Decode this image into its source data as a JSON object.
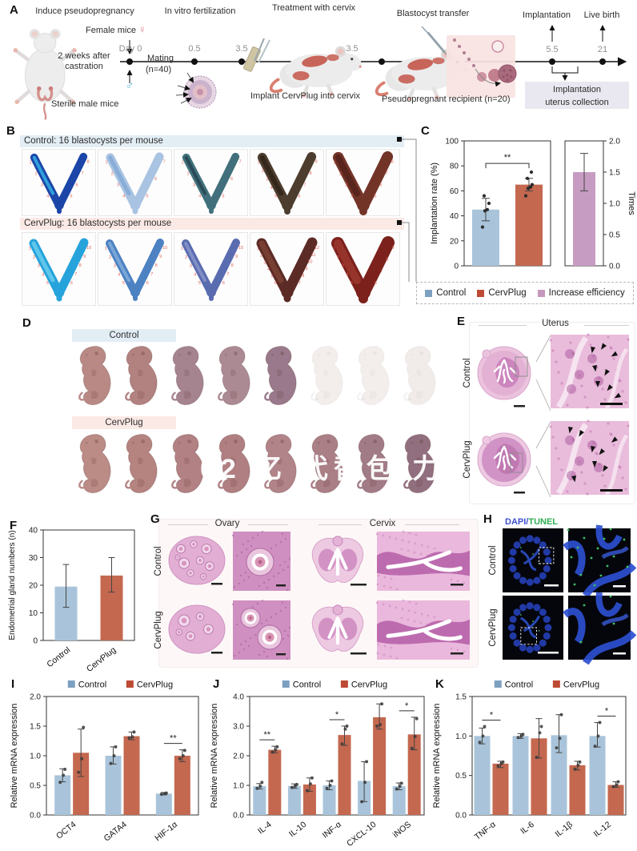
{
  "colors": {
    "control": "#a9c4da",
    "cervplug": "#c4684f",
    "increase": "#c79cc2",
    "legend_control": "#7d9fc0",
    "legend_cervplug": "#bd4a33",
    "legend_increase": "#c598c0",
    "site_number": "#e0635a",
    "band_blue": "#e2edf4",
    "band_pink": "#fbe9e5"
  },
  "figure": {
    "panel_a": {
      "label": "A",
      "step_labels": [
        "Induce pseudopregnancy",
        "In vitro fertilization",
        "Treatment with cervix",
        "Blastocyst transfer",
        "Implantation",
        "Live birth"
      ],
      "female_mice": "Female mice",
      "female_symbol": "♀",
      "male_symbol": "♂",
      "day0": "Day 0",
      "castration_note": "2 weeks after castration",
      "mating_line1": "Mating",
      "mating_line2": "(n=40)",
      "sterile_note": "Sterile male mice",
      "timepoints": [
        {
          "label": "0.5"
        },
        {
          "label": "3.5"
        },
        {
          "label": "3.5"
        },
        {
          "label": "5.5"
        },
        {
          "label": "21"
        }
      ],
      "implant_caption": "Implant CervPlug into cervix",
      "recipient_caption": "Pseudopregnant recipient (n=20)",
      "collection_line1": "Implantation",
      "collection_line2": "uterus collection"
    },
    "panel_b": {
      "label": "B",
      "groups": [
        {
          "header": "Control: 16 blastocysts per mouse",
          "band_color": "#e2edf4",
          "uteri": [
            {
              "color": "#1b46a8",
              "accent": "#35b6e8",
              "sites": 8,
              "w": 10
            },
            {
              "color": "#a9c3e2",
              "accent": "#7fa8d4",
              "sites": 7,
              "w": 11
            },
            {
              "color": "#41707c",
              "accent": "#23424e",
              "sites": 7,
              "w": 10
            },
            {
              "color": "#4c3d2e",
              "accent": "#2e2218",
              "sites": 9,
              "w": 12
            },
            {
              "color": "#733428",
              "accent": "#51201a",
              "sites": 8,
              "w": 14
            }
          ]
        },
        {
          "header": "CervPlug: 16 blastocysts per mouse",
          "band_color": "#fbe9e5",
          "uteri": [
            {
              "color": "#27a3dc",
              "accent": "#6fd0f0",
              "sites": 10,
              "w": 11
            },
            {
              "color": "#4d82c2",
              "accent": "#86b0dc",
              "sites": 10,
              "w": 10
            },
            {
              "color": "#5a6cb0",
              "accent": "#8b98cc",
              "sites": 10,
              "w": 10
            },
            {
              "color": "#5c2b26",
              "accent": "#7e4436",
              "sites": 12,
              "w": 13
            },
            {
              "color": "#7c211c",
              "accent": "#9c3a30",
              "sites": 9,
              "w": 16
            }
          ]
        }
      ]
    },
    "panel_c": {
      "label": "C"
    },
    "panel_d": {
      "label": "D",
      "watermark": "02 亿 代替包 力",
      "groups": [
        {
          "header": "Control",
          "band_color": "#e2edf4",
          "pups": [
            {
              "color": "#b98a85"
            },
            {
              "color": "#b28280"
            },
            {
              "color": "#a58490"
            },
            {
              "color": "#ab8a93"
            },
            {
              "color": "#99798b"
            },
            {
              "color": "#f3eeec",
              "faded": true
            },
            {
              "color": "#f3eeec",
              "faded": true
            },
            {
              "color": "#f1ecea",
              "faded": true
            }
          ]
        },
        {
          "header": "CervPlug",
          "band_color": "#fbe9e5",
          "pups": [
            {
              "color": "#bb8b86"
            },
            {
              "color": "#b58480"
            },
            {
              "color": "#b18183"
            },
            {
              "color": "#af7f82"
            },
            {
              "color": "#b18489"
            },
            {
              "color": "#aa7f86"
            },
            {
              "color": "#a17b86"
            },
            {
              "color": "#916f7e"
            }
          ]
        }
      ]
    },
    "panel_e": {
      "label": "E",
      "title": "Uterus",
      "rows": [
        "Control",
        "CervPlug"
      ]
    },
    "panel_f": {
      "label": "F"
    },
    "panel_g": {
      "label": "G",
      "col_titles": [
        "Ovary",
        "Cervix"
      ],
      "rows": [
        "Control",
        "CervPlug"
      ]
    },
    "panel_h": {
      "label": "H",
      "stain_a": "DAPI",
      "stain_sep": "/",
      "stain_b": "TUNEL",
      "stain_a_color": "#3d4fd0",
      "stain_b_color": "#2fae52",
      "rows": [
        "Control",
        "CervPlug"
      ]
    },
    "panel_i": {
      "label": "I"
    },
    "panel_j": {
      "label": "J"
    },
    "panel_k": {
      "label": "K"
    }
  },
  "chart_data": [
    {
      "panel": "C",
      "type": "bar",
      "left_axis": {
        "label": "Implantation rate (%)",
        "range": [
          0,
          100
        ],
        "ticks": [
          "0",
          "20",
          "40",
          "60",
          "80",
          "100"
        ]
      },
      "right_axis": {
        "label": "Times",
        "range": [
          0,
          2
        ],
        "ticks": [
          "0.0",
          "0.5",
          "1.0",
          "1.5",
          "2.0"
        ]
      },
      "bars": [
        {
          "name": "Control",
          "axis": "left",
          "value": 45,
          "err": [
            36,
            54
          ],
          "dots": [
            31,
            44,
            45,
            50,
            56
          ],
          "color": "control"
        },
        {
          "name": "CervPlug",
          "axis": "left",
          "value": 65,
          "err": [
            60,
            70
          ],
          "dots": [
            56,
            62,
            63,
            65,
            70,
            75
          ],
          "color": "cervplug"
        },
        {
          "name": "Increase efficiency",
          "axis": "right",
          "value": 1.5,
          "err": [
            1.2,
            1.8
          ],
          "dots": [],
          "color": "increase"
        }
      ],
      "significance": [
        {
          "between": [
            0,
            1
          ],
          "label": "**"
        }
      ],
      "legend": [
        {
          "label": "Control",
          "color": "legend_control"
        },
        {
          "label": "CervPlug",
          "color": "legend_cervplug"
        },
        {
          "label": "Increase efficiency",
          "color": "legend_increase"
        }
      ]
    },
    {
      "panel": "F",
      "type": "bar",
      "ylabel": "Endometrial gland numbers (n)",
      "ylim": [
        0,
        40
      ],
      "yticks": [
        "0",
        "10",
        "20",
        "30",
        "40"
      ],
      "categories": [
        "Control",
        "CervPlug"
      ],
      "series": [
        {
          "name": "",
          "colors": [
            "control",
            "cervplug"
          ],
          "values": [
            19.5,
            23.5
          ],
          "errors": [
            [
              12,
              27.5
            ],
            [
              17.5,
              30
            ]
          ],
          "dots": [
            [],
            []
          ]
        }
      ]
    },
    {
      "panel": "I",
      "type": "grouped-bar",
      "ylabel": "Relative mRNA expression",
      "ylim": [
        0,
        2
      ],
      "yticks": [
        "0.0",
        "0.5",
        "1.0",
        "1.5",
        "2.0"
      ],
      "categories": [
        "OCT4",
        "GATA4",
        "HIF-1α"
      ],
      "series": [
        {
          "name": "Control",
          "color": "control",
          "values": [
            0.67,
            1.0,
            0.36
          ],
          "errors": [
            [
              0.56,
              0.78
            ],
            [
              0.86,
              1.15
            ],
            [
              0.34,
              0.38
            ]
          ],
          "dots": [
            [
              0.55,
              0.67,
              0.77
            ],
            [
              0.87,
              1.0,
              1.15
            ],
            [
              0.35,
              0.36,
              0.37
            ]
          ]
        },
        {
          "name": "CervPlug",
          "color": "cervplug",
          "values": [
            1.05,
            1.33,
            1.0
          ],
          "errors": [
            [
              0.65,
              1.45
            ],
            [
              1.27,
              1.4
            ],
            [
              0.9,
              1.1
            ]
          ],
          "dots": [
            [
              0.72,
              0.95,
              1.48
            ],
            [
              1.3,
              1.32,
              1.4
            ],
            [
              0.95,
              1.0,
              1.09
            ]
          ]
        }
      ],
      "significance": [
        {
          "category": 2,
          "label": "**"
        }
      ],
      "legend": [
        {
          "label": "Control",
          "color": "legend_control"
        },
        {
          "label": "CervPlug",
          "color": "legend_cervplug"
        }
      ]
    },
    {
      "panel": "J",
      "type": "grouped-bar",
      "ylabel": "Relative mRNA expression",
      "ylim": [
        0,
        4
      ],
      "yticks": [
        "0.0",
        "1.0",
        "2.0",
        "3.0",
        "4.0"
      ],
      "categories": [
        "IL-4",
        "IL-10",
        "INF-α",
        "CXCL-10",
        "iNOS"
      ],
      "series": [
        {
          "name": "Control",
          "color": "control",
          "values": [
            0.97,
            0.98,
            1.0,
            1.15,
            0.97
          ],
          "errors": [
            [
              0.88,
              1.06
            ],
            [
              0.9,
              1.05
            ],
            [
              0.85,
              1.15
            ],
            [
              0.45,
              1.8
            ],
            [
              0.85,
              1.08
            ]
          ],
          "dots": [
            [
              0.9,
              0.97,
              1.1
            ],
            [
              0.93,
              0.98,
              1.03
            ],
            [
              0.9,
              1.0,
              1.15
            ],
            [
              0.45,
              1.1,
              1.8
            ],
            [
              0.88,
              0.97,
              1.07
            ]
          ]
        },
        {
          "name": "CervPlug",
          "color": "cervplug",
          "values": [
            2.2,
            1.03,
            2.7,
            3.3,
            2.72
          ],
          "errors": [
            [
              2.1,
              2.32
            ],
            [
              0.8,
              1.25
            ],
            [
              2.35,
              3.0
            ],
            [
              2.9,
              3.75
            ],
            [
              2.2,
              3.3
            ]
          ],
          "dots": [
            [
              2.12,
              2.2,
              2.3
            ],
            [
              0.82,
              1.05,
              1.25
            ],
            [
              2.4,
              2.9,
              3.0
            ],
            [
              3.0,
              3.05,
              3.75
            ],
            [
              2.25,
              2.65,
              3.25
            ]
          ]
        }
      ],
      "significance": [
        {
          "category": 0,
          "label": "**"
        },
        {
          "category": 2,
          "label": "*"
        },
        {
          "category": 4,
          "label": "*"
        }
      ],
      "legend": [
        {
          "label": "Control",
          "color": "legend_control"
        },
        {
          "label": "CervPlug",
          "color": "legend_cervplug"
        }
      ]
    },
    {
      "panel": "K",
      "type": "grouped-bar",
      "ylabel": "Relative mRNA expression",
      "ylim": [
        0,
        1.5
      ],
      "yticks": [
        "0.0",
        "0.5",
        "1.0",
        "1.5"
      ],
      "categories": [
        "TNF-α",
        "IL-6",
        "IL-1β",
        "IL-12"
      ],
      "series": [
        {
          "name": "Control",
          "color": "control",
          "values": [
            1.0,
            1.0,
            1.01,
            1.0
          ],
          "errors": [
            [
              0.9,
              1.1
            ],
            [
              0.97,
              1.03
            ],
            [
              0.79,
              1.27
            ],
            [
              0.86,
              1.17
            ]
          ],
          "dots": [
            [
              0.92,
              1.0,
              1.12
            ],
            [
              0.98,
              1.0,
              1.02
            ],
            [
              0.85,
              0.97,
              1.27
            ],
            [
              0.87,
              1.0,
              1.17
            ]
          ]
        },
        {
          "name": "CervPlug",
          "color": "cervplug",
          "values": [
            0.65,
            0.97,
            0.63,
            0.38
          ],
          "errors": [
            [
              0.6,
              0.68
            ],
            [
              0.72,
              1.22
            ],
            [
              0.57,
              0.68
            ],
            [
              0.35,
              0.42
            ]
          ],
          "dots": [
            [
              0.62,
              0.65,
              0.67
            ],
            [
              0.73,
              1.04,
              1.12
            ],
            [
              0.58,
              0.63,
              0.67
            ],
            [
              0.36,
              0.38,
              0.42
            ]
          ]
        }
      ],
      "significance": [
        {
          "category": 0,
          "label": "*"
        },
        {
          "category": 3,
          "label": "*"
        }
      ],
      "legend": [
        {
          "label": "Control",
          "color": "legend_control"
        },
        {
          "label": "CervPlug",
          "color": "legend_cervplug"
        }
      ]
    }
  ]
}
